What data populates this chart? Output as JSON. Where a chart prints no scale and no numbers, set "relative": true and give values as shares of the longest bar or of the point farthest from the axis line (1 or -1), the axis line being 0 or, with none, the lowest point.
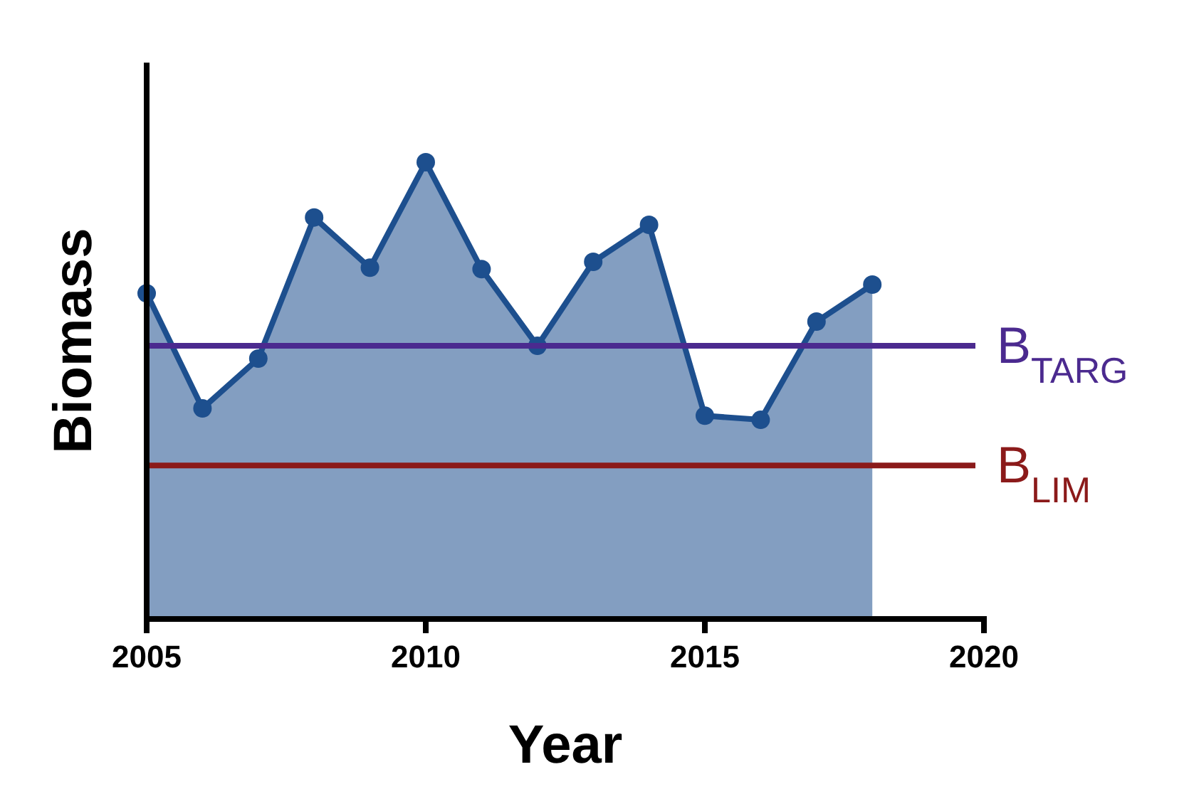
{
  "chart_data": {
    "type": "area",
    "xlabel": "Year",
    "ylabel": "Biomass",
    "relative": true,
    "x": [
      2005,
      2006,
      2007,
      2008,
      2009,
      2010,
      2011,
      2012,
      2013,
      2014,
      2015,
      2016,
      2017,
      2018
    ],
    "series": [
      {
        "color": "#1d4f8e",
        "values": [
          0.713,
          0.461,
          0.57,
          0.879,
          0.769,
          1,
          0.766,
          0.598,
          0.782,
          0.863,
          0.445,
          0.436,
          0.651,
          0.732
        ]
      }
    ],
    "xlim": [
      2005,
      2020
    ],
    "xticks": [
      2005,
      2010,
      2015,
      2020
    ],
    "ref_lines": [
      {
        "axis": "y",
        "value": 0.598,
        "label": "B$_{TARG}$",
        "color": "#4b2a8f"
      },
      {
        "axis": "y",
        "value": 0.336,
        "label": "B$_{LIM}$",
        "color": "#8b1a1a"
      }
    ],
    "marker": "circle"
  }
}
